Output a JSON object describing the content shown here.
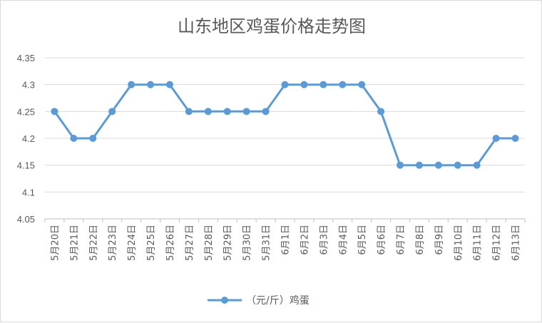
{
  "chart_data": {
    "type": "line",
    "title": "山东地区鸡蛋价格走势图",
    "xlabel": "",
    "ylabel": "",
    "ylim": [
      4.05,
      4.35
    ],
    "yticks": [
      "4.05",
      "4.1",
      "4.15",
      "4.2",
      "4.25",
      "4.3",
      "4.35"
    ],
    "grid": true,
    "legend_position": "bottom",
    "categories": [
      "5月20日",
      "5月21日",
      "5月22日",
      "5月23日",
      "5月24日",
      "5月25日",
      "5月26日",
      "5月27日",
      "5月28日",
      "5月29日",
      "5月30日",
      "5月31日",
      "6月1日",
      "6月2日",
      "6月3日",
      "6月4日",
      "6月5日",
      "6月6日",
      "6月7日",
      "6月8日",
      "6月9日",
      "6月10日",
      "6月11日",
      "6月12日",
      "6月13日"
    ],
    "series": [
      {
        "name": "（元/斤）鸡蛋",
        "color": "#5b9bd5",
        "values": [
          4.25,
          4.2,
          4.2,
          4.25,
          4.3,
          4.3,
          4.3,
          4.25,
          4.25,
          4.25,
          4.25,
          4.25,
          4.3,
          4.3,
          4.3,
          4.3,
          4.3,
          4.25,
          4.15,
          4.15,
          4.15,
          4.15,
          4.15,
          4.2,
          4.2
        ]
      }
    ]
  }
}
